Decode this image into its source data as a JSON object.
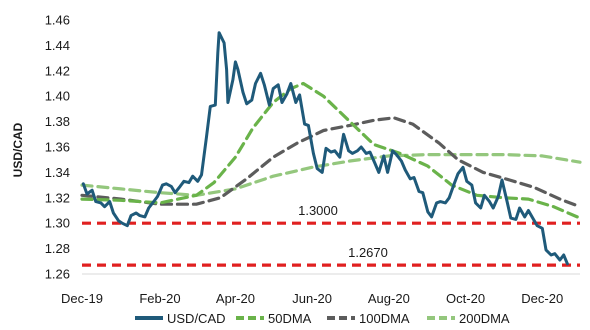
{
  "chart_data": {
    "type": "line",
    "title": "",
    "xlabel": "",
    "ylabel": "USD/CAD",
    "ylim": [
      1.26,
      1.46
    ],
    "yticks": [
      "1.26",
      "1.28",
      "1.30",
      "1.32",
      "1.34",
      "1.36",
      "1.38",
      "1.40",
      "1.42",
      "1.44",
      "1.46"
    ],
    "xticks": [
      "Dec-19",
      "Feb-20",
      "Apr-20",
      "Jun-20",
      "Aug-20",
      "Oct-20",
      "Dec-20"
    ],
    "xlim": [
      "2019-12-01",
      "2020-12-31"
    ],
    "grid": false,
    "legend": "bottom",
    "reference_lines": [
      {
        "value": 1.3,
        "label": "1.3000",
        "color": "#e02020"
      },
      {
        "value": 1.267,
        "label": "1.2670",
        "color": "#e02020"
      }
    ],
    "series": [
      {
        "name": "USD/CAD",
        "color": "#1f5a7a",
        "style": "solid",
        "points": [
          [
            "2019-12-02",
            1.331
          ],
          [
            "2019-12-05",
            1.323
          ],
          [
            "2019-12-09",
            1.326
          ],
          [
            "2019-12-12",
            1.317
          ],
          [
            "2019-12-16",
            1.316
          ],
          [
            "2019-12-19",
            1.313
          ],
          [
            "2019-12-23",
            1.317
          ],
          [
            "2019-12-26",
            1.308
          ],
          [
            "2019-12-30",
            1.302
          ],
          [
            "2020-01-02",
            1.3
          ],
          [
            "2020-01-06",
            1.298
          ],
          [
            "2020-01-09",
            1.306
          ],
          [
            "2020-01-13",
            1.308
          ],
          [
            "2020-01-16",
            1.306
          ],
          [
            "2020-01-20",
            1.305
          ],
          [
            "2020-01-23",
            1.312
          ],
          [
            "2020-01-27",
            1.317
          ],
          [
            "2020-01-30",
            1.321
          ],
          [
            "2020-02-03",
            1.33
          ],
          [
            "2020-02-06",
            1.331
          ],
          [
            "2020-02-10",
            1.329
          ],
          [
            "2020-02-13",
            1.324
          ],
          [
            "2020-02-17",
            1.329
          ],
          [
            "2020-02-20",
            1.333
          ],
          [
            "2020-02-24",
            1.332
          ],
          [
            "2020-02-27",
            1.337
          ],
          [
            "2020-03-02",
            1.333
          ],
          [
            "2020-03-05",
            1.338
          ],
          [
            "2020-03-09",
            1.368
          ],
          [
            "2020-03-12",
            1.392
          ],
          [
            "2020-03-16",
            1.393
          ],
          [
            "2020-03-18",
            1.434
          ],
          [
            "2020-03-19",
            1.45
          ],
          [
            "2020-03-23",
            1.442
          ],
          [
            "2020-03-25",
            1.421
          ],
          [
            "2020-03-26",
            1.395
          ],
          [
            "2020-03-30",
            1.413
          ],
          [
            "2020-04-01",
            1.427
          ],
          [
            "2020-04-03",
            1.421
          ],
          [
            "2020-04-07",
            1.403
          ],
          [
            "2020-04-10",
            1.394
          ],
          [
            "2020-04-14",
            1.397
          ],
          [
            "2020-04-17",
            1.41
          ],
          [
            "2020-04-21",
            1.418
          ],
          [
            "2020-04-24",
            1.409
          ],
          [
            "2020-04-28",
            1.393
          ],
          [
            "2020-05-01",
            1.406
          ],
          [
            "2020-05-05",
            1.409
          ],
          [
            "2020-05-08",
            1.395
          ],
          [
            "2020-05-12",
            1.402
          ],
          [
            "2020-05-15",
            1.41
          ],
          [
            "2020-05-19",
            1.395
          ],
          [
            "2020-05-22",
            1.401
          ],
          [
            "2020-05-26",
            1.378
          ],
          [
            "2020-05-29",
            1.377
          ],
          [
            "2020-06-02",
            1.355
          ],
          [
            "2020-06-05",
            1.343
          ],
          [
            "2020-06-09",
            1.34
          ],
          [
            "2020-06-12",
            1.359
          ],
          [
            "2020-06-16",
            1.356
          ],
          [
            "2020-06-19",
            1.357
          ],
          [
            "2020-06-23",
            1.352
          ],
          [
            "2020-06-26",
            1.37
          ],
          [
            "2020-06-30",
            1.357
          ],
          [
            "2020-07-03",
            1.355
          ],
          [
            "2020-07-07",
            1.357
          ],
          [
            "2020-07-10",
            1.36
          ],
          [
            "2020-07-14",
            1.355
          ],
          [
            "2020-07-17",
            1.356
          ],
          [
            "2020-07-21",
            1.347
          ],
          [
            "2020-07-24",
            1.34
          ],
          [
            "2020-07-28",
            1.353
          ],
          [
            "2020-07-31",
            1.34
          ],
          [
            "2020-08-04",
            1.357
          ],
          [
            "2020-08-07",
            1.354
          ],
          [
            "2020-08-11",
            1.349
          ],
          [
            "2020-08-14",
            1.342
          ],
          [
            "2020-08-18",
            1.335
          ],
          [
            "2020-08-21",
            1.336
          ],
          [
            "2020-08-25",
            1.325
          ],
          [
            "2020-08-28",
            1.324
          ],
          [
            "2020-09-01",
            1.309
          ],
          [
            "2020-09-04",
            1.305
          ],
          [
            "2020-09-08",
            1.316
          ],
          [
            "2020-09-11",
            1.317
          ],
          [
            "2020-09-15",
            1.316
          ],
          [
            "2020-09-18",
            1.32
          ],
          [
            "2020-09-22",
            1.331
          ],
          [
            "2020-09-25",
            1.339
          ],
          [
            "2020-09-29",
            1.344
          ],
          [
            "2020-10-02",
            1.333
          ],
          [
            "2020-10-06",
            1.33
          ],
          [
            "2020-10-09",
            1.316
          ],
          [
            "2020-10-13",
            1.312
          ],
          [
            "2020-10-16",
            1.322
          ],
          [
            "2020-10-20",
            1.317
          ],
          [
            "2020-10-23",
            1.312
          ],
          [
            "2020-10-27",
            1.321
          ],
          [
            "2020-10-30",
            1.334
          ],
          [
            "2020-11-03",
            1.317
          ],
          [
            "2020-11-06",
            1.304
          ],
          [
            "2020-11-10",
            1.303
          ],
          [
            "2020-11-13",
            1.312
          ],
          [
            "2020-11-17",
            1.305
          ],
          [
            "2020-11-20",
            1.31
          ],
          [
            "2020-11-24",
            1.303
          ],
          [
            "2020-11-27",
            1.298
          ],
          [
            "2020-12-01",
            1.296
          ],
          [
            "2020-12-04",
            1.279
          ],
          [
            "2020-12-08",
            1.275
          ],
          [
            "2020-12-11",
            1.276
          ],
          [
            "2020-12-15",
            1.271
          ],
          [
            "2020-12-18",
            1.275
          ],
          [
            "2020-12-21",
            1.268
          ]
        ]
      },
      {
        "name": "50DMA",
        "color": "#6ab34a",
        "style": "dashed",
        "points": [
          [
            "2019-12-01",
            1.319
          ],
          [
            "2020-01-01",
            1.318
          ],
          [
            "2020-02-01",
            1.316
          ],
          [
            "2020-03-01",
            1.322
          ],
          [
            "2020-03-15",
            1.332
          ],
          [
            "2020-04-01",
            1.352
          ],
          [
            "2020-04-15",
            1.375
          ],
          [
            "2020-05-01",
            1.395
          ],
          [
            "2020-05-15",
            1.406
          ],
          [
            "2020-05-25",
            1.41
          ],
          [
            "2020-06-10",
            1.4
          ],
          [
            "2020-07-01",
            1.38
          ],
          [
            "2020-07-20",
            1.362
          ],
          [
            "2020-08-10",
            1.355
          ],
          [
            "2020-09-01",
            1.345
          ],
          [
            "2020-09-20",
            1.33
          ],
          [
            "2020-10-10",
            1.322
          ],
          [
            "2020-11-01",
            1.32
          ],
          [
            "2020-11-20",
            1.319
          ],
          [
            "2020-12-10",
            1.313
          ],
          [
            "2020-12-31",
            1.304
          ]
        ]
      },
      {
        "name": "100DMA",
        "color": "#5c5c5c",
        "style": "dashed",
        "points": [
          [
            "2019-12-01",
            1.322
          ],
          [
            "2020-01-01",
            1.319
          ],
          [
            "2020-02-01",
            1.315
          ],
          [
            "2020-03-01",
            1.315
          ],
          [
            "2020-03-20",
            1.32
          ],
          [
            "2020-04-10",
            1.335
          ],
          [
            "2020-05-01",
            1.352
          ],
          [
            "2020-05-20",
            1.363
          ],
          [
            "2020-06-10",
            1.373
          ],
          [
            "2020-07-01",
            1.377
          ],
          [
            "2020-07-20",
            1.381
          ],
          [
            "2020-08-05",
            1.383
          ],
          [
            "2020-08-20",
            1.378
          ],
          [
            "2020-09-10",
            1.363
          ],
          [
            "2020-09-25",
            1.35
          ],
          [
            "2020-10-15",
            1.34
          ],
          [
            "2020-11-05",
            1.334
          ],
          [
            "2020-11-25",
            1.328
          ],
          [
            "2020-12-15",
            1.319
          ],
          [
            "2020-12-31",
            1.313
          ]
        ]
      },
      {
        "name": "200DMA",
        "color": "#94c77d",
        "style": "dashed",
        "points": [
          [
            "2019-12-01",
            1.33
          ],
          [
            "2020-01-01",
            1.327
          ],
          [
            "2020-02-01",
            1.324
          ],
          [
            "2020-03-01",
            1.322
          ],
          [
            "2020-04-01",
            1.327
          ],
          [
            "2020-05-01",
            1.337
          ],
          [
            "2020-06-01",
            1.344
          ],
          [
            "2020-07-01",
            1.349
          ],
          [
            "2020-08-01",
            1.353
          ],
          [
            "2020-09-01",
            1.354
          ],
          [
            "2020-10-01",
            1.354
          ],
          [
            "2020-11-01",
            1.354
          ],
          [
            "2020-12-01",
            1.353
          ],
          [
            "2020-12-31",
            1.348
          ]
        ]
      }
    ]
  }
}
